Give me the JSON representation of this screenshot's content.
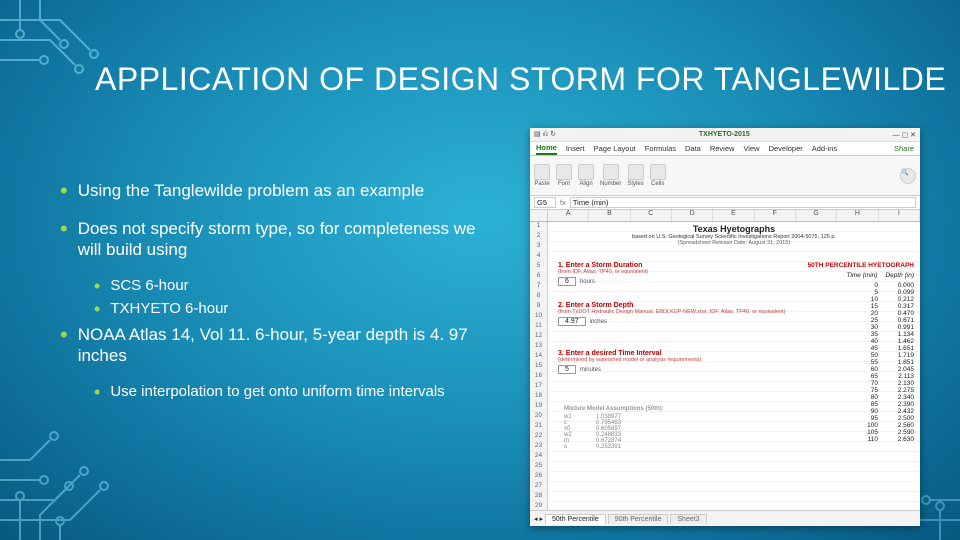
{
  "slide": {
    "title": "APPLICATION OF DESIGN STORM FOR TANGLEWILDE",
    "bullet_color": "#9fd94a",
    "text_color": "#ffffff",
    "bullets": [
      {
        "level": 1,
        "text": "Using the Tanglewilde problem as an example"
      },
      {
        "level": 1,
        "text": "Does not specify storm type, so for completeness we will build using"
      },
      {
        "level": 2,
        "text": "SCS 6-hour"
      },
      {
        "level": 2,
        "text": "TXHYETO 6-hour"
      },
      {
        "level": 1,
        "text": "NOAA Atlas 14, Vol 11.  6-hour, 5-year depth is 4. 97 inches"
      },
      {
        "level": 2,
        "text": "Use interpolation to get onto uniform time intervals"
      }
    ]
  },
  "screenshot": {
    "window": {
      "filename": "TXHYETO-2015",
      "app_hint": "Excel"
    },
    "ribbon": {
      "tabs": [
        "Home",
        "Insert",
        "Page Layout",
        "Formulas",
        "Data",
        "Review",
        "View",
        "Developer",
        "Add-ins"
      ],
      "active": "Home",
      "share": "Share"
    },
    "formula_bar": {
      "cell": "G5",
      "fx": "fx",
      "value": "Time (min)"
    },
    "columns": [
      "A",
      "B",
      "C",
      "D",
      "E",
      "F",
      "G",
      "H",
      "I"
    ],
    "row_count": 32,
    "sheet_title": "Texas Hyetographs",
    "sheet_sub": "based on U.S. Geological Survey Scientific Investigations Report 2004-5075, 125 p.",
    "sheet_sub2": "(Spreadsheet Release Date: August 31, 2015)",
    "steps": {
      "s1": {
        "label": "1. Enter a Storm Duration",
        "hint": "(from IDF, Atlas, TP40, or equivalent)",
        "value": "6",
        "unit": "hours"
      },
      "s2": {
        "label": "2. Enter a Storm Depth",
        "hint": "(from TxDOT Hydraulic Design Manual, EBDLKUP-NEW.xlsx, IDF, Atlas, TP40, or equivalent)",
        "value": "4.97",
        "unit": "inches"
      },
      "s3": {
        "label": "3. Enter a desired Time Interval",
        "hint": "(determined by watershed model or analysis requirements)",
        "value": "5",
        "unit": "minutes"
      }
    },
    "hyetograph": {
      "title": "50TH PERCENTILE HYETOGRAPH",
      "col1": "Time (min)",
      "col2": "Depth (in)",
      "rows": [
        [
          0,
          "0.000"
        ],
        [
          5,
          "0.099"
        ],
        [
          10,
          "0.212"
        ],
        [
          15,
          "0.317"
        ],
        [
          20,
          "0.470"
        ],
        [
          25,
          "0.671"
        ],
        [
          30,
          "0.991"
        ],
        [
          35,
          "1.134"
        ],
        [
          40,
          "1.462"
        ],
        [
          45,
          "1.651"
        ],
        [
          50,
          "1.719"
        ],
        [
          55,
          "1.851"
        ],
        [
          60,
          "2.045"
        ],
        [
          65,
          "2.113"
        ],
        [
          70,
          "2.130"
        ],
        [
          75,
          "2.275"
        ],
        [
          80,
          "2.340"
        ],
        [
          85,
          "2.390"
        ],
        [
          90,
          "2.432"
        ],
        [
          95,
          "2.500"
        ],
        [
          100,
          "2.560"
        ],
        [
          105,
          "2.590"
        ],
        [
          110,
          "2.630"
        ]
      ]
    },
    "model_assumptions": {
      "title": "Mixture Model Assumptions (50th):",
      "params": [
        [
          "w1",
          "1.038977"
        ],
        [
          "c",
          "0.795463"
        ],
        [
          "x0",
          "0.605897"
        ],
        [
          "w2",
          "0.248833"
        ],
        [
          "m",
          "0.672874"
        ],
        [
          "s",
          "0.253391"
        ]
      ]
    },
    "sheet_tabs": {
      "active": "50th Percentile",
      "others": [
        "90th Percentile",
        "Sheet3"
      ]
    }
  }
}
